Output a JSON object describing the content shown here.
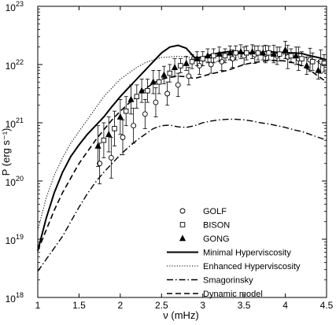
{
  "chart_data": {
    "type": "line",
    "xlabel": "ν (mHz)",
    "ylabel": "P (erg s⁻¹)",
    "xlim": [
      1,
      4.5
    ],
    "ylim_log10": [
      18,
      23
    ],
    "y_scale": "log",
    "grid": false,
    "legend_position": "lower-right",
    "x_ticks": [
      {
        "value": 1,
        "label": "1"
      },
      {
        "value": 1.5,
        "label": "1.5"
      },
      {
        "value": 2,
        "label": "2"
      },
      {
        "value": 2.5,
        "label": "2.5"
      },
      {
        "value": 3,
        "label": "3"
      },
      {
        "value": 3.5,
        "label": "3.5"
      },
      {
        "value": 4,
        "label": "4"
      },
      {
        "value": 4.5,
        "label": "4.5"
      }
    ],
    "y_ticks": [
      {
        "value": 18,
        "base": "10",
        "exp": "18"
      },
      {
        "value": 19,
        "base": "10",
        "exp": "19"
      },
      {
        "value": 20,
        "base": "10",
        "exp": "20"
      },
      {
        "value": 21,
        "base": "10",
        "exp": "21"
      },
      {
        "value": 22,
        "base": "10",
        "exp": "22"
      },
      {
        "value": 23,
        "base": "10",
        "exp": "23"
      }
    ],
    "series": [
      {
        "name": "Minimal Hyperviscosity",
        "kind": "line",
        "dash": "solid",
        "width": 2.0,
        "x": [
          1.0,
          1.1,
          1.2,
          1.3,
          1.4,
          1.5,
          1.6,
          1.7,
          1.8,
          1.9,
          2.0,
          2.1,
          2.2,
          2.3,
          2.4,
          2.5,
          2.6,
          2.7,
          2.8,
          2.9,
          3.0,
          3.1,
          3.2,
          3.3,
          3.4,
          3.5,
          3.6,
          3.7,
          3.8,
          3.9,
          4.0,
          4.1,
          4.2,
          4.3,
          4.4,
          4.5
        ],
        "y": [
          18.8,
          19.35,
          19.8,
          20.15,
          20.42,
          20.62,
          20.8,
          20.95,
          21.1,
          21.28,
          21.45,
          21.6,
          21.75,
          21.9,
          22.05,
          22.2,
          22.3,
          22.33,
          22.28,
          22.12,
          22.12,
          22.17,
          22.2,
          22.22,
          22.22,
          22.2,
          22.2,
          22.21,
          22.22,
          22.21,
          22.2,
          22.2,
          22.19,
          22.15,
          22.12,
          22.08
        ]
      },
      {
        "name": "Enhanced Hyperviscosity",
        "kind": "line",
        "dash": "dotted",
        "width": 1.1,
        "x": [
          1.0,
          1.1,
          1.2,
          1.3,
          1.4,
          1.5,
          1.6,
          1.7,
          1.8,
          1.9,
          2.0,
          2.1,
          2.2,
          2.3,
          2.4,
          2.5,
          2.6,
          2.7,
          2.8,
          2.9,
          3.0,
          3.1,
          3.2,
          3.3,
          3.4,
          3.5,
          3.6,
          3.7,
          3.8,
          3.9,
          4.0,
          4.1,
          4.2,
          4.3,
          4.4,
          4.5
        ],
        "y": [
          19.15,
          19.7,
          20.1,
          20.4,
          20.65,
          20.85,
          21.05,
          21.25,
          21.45,
          21.6,
          21.75,
          21.85,
          21.95,
          22.03,
          22.08,
          22.12,
          22.13,
          22.14,
          22.13,
          22.1,
          22.06,
          22.04,
          22.05,
          22.08,
          22.12,
          22.15,
          22.17,
          22.18,
          22.18,
          22.18,
          22.17,
          22.15,
          22.13,
          22.1,
          22.07,
          22.03
        ]
      },
      {
        "name": "Smagorinsky",
        "kind": "line",
        "dash": "dashdot",
        "width": 1.4,
        "x": [
          1.0,
          1.1,
          1.2,
          1.3,
          1.4,
          1.5,
          1.6,
          1.7,
          1.8,
          1.9,
          2.0,
          2.1,
          2.2,
          2.3,
          2.4,
          2.5,
          2.6,
          2.7,
          2.8,
          2.9,
          3.0,
          3.1,
          3.2,
          3.3,
          3.4,
          3.5,
          3.6,
          3.7,
          3.8,
          3.9,
          4.0,
          4.1,
          4.2,
          4.3,
          4.4,
          4.5
        ],
        "y": [
          18.45,
          18.65,
          18.85,
          19.05,
          19.3,
          19.55,
          19.78,
          19.98,
          20.15,
          20.3,
          20.45,
          20.58,
          20.7,
          20.8,
          20.9,
          20.95,
          20.96,
          20.93,
          20.92,
          20.95,
          21.0,
          21.03,
          21.05,
          21.06,
          21.06,
          21.05,
          21.03,
          21.0,
          20.98,
          20.95,
          20.92,
          20.88,
          20.85,
          20.8,
          20.75,
          20.7
        ]
      },
      {
        "name": "Dynamic model",
        "kind": "line",
        "dash": "dashed",
        "width": 1.6,
        "x": [
          1.0,
          1.1,
          1.2,
          1.3,
          1.4,
          1.5,
          1.6,
          1.7,
          1.8,
          1.9,
          2.0,
          2.1,
          2.2,
          2.3,
          2.4,
          2.5,
          2.6,
          2.7,
          2.8,
          2.9,
          3.0,
          3.1,
          3.2,
          3.3,
          3.4,
          3.5,
          3.6,
          3.7,
          3.8,
          3.9,
          4.0,
          4.1,
          4.2,
          4.3,
          4.4,
          4.5
        ],
        "y": [
          18.8,
          19.15,
          19.5,
          19.8,
          20.05,
          20.3,
          20.5,
          20.7,
          20.88,
          21.05,
          21.2,
          21.33,
          21.45,
          21.58,
          21.68,
          21.75,
          21.78,
          21.8,
          21.79,
          21.76,
          21.8,
          21.84,
          21.87,
          21.9,
          21.95,
          22.0,
          22.03,
          22.05,
          22.07,
          22.07,
          22.06,
          22.03,
          21.98,
          21.9,
          21.8,
          21.7
        ]
      },
      {
        "name": "GOLF",
        "kind": "markers",
        "marker": "circle",
        "x": [
          1.75,
          1.89,
          2.03,
          2.16,
          2.3,
          2.43,
          2.57,
          2.7,
          2.83,
          2.96,
          3.1,
          3.23,
          3.36,
          3.5,
          3.63,
          3.76,
          3.9,
          4.03,
          4.16,
          4.3,
          4.43
        ],
        "y": [
          20.3,
          20.4,
          20.75,
          20.95,
          21.15,
          21.35,
          21.5,
          21.65,
          21.8,
          21.98,
          22.0,
          22.05,
          22.1,
          22.15,
          22.17,
          22.18,
          22.15,
          22.13,
          22.1,
          22.08,
          22.05
        ],
        "err": [
          0.35,
          0.35,
          0.3,
          0.3,
          0.25,
          0.25,
          0.2,
          0.2,
          0.15,
          0.15,
          0.15,
          0.15,
          0.15,
          0.15,
          0.15,
          0.15,
          0.15,
          0.2,
          0.2,
          0.2,
          0.2
        ]
      },
      {
        "name": "BISON",
        "kind": "markers",
        "marker": "square",
        "x": [
          1.8,
          1.93,
          2.07,
          2.2,
          2.33,
          2.47,
          2.6,
          2.73,
          2.87,
          3.0,
          3.13,
          3.27,
          3.4,
          3.53,
          3.67,
          3.8,
          3.93,
          4.07,
          4.2,
          4.33,
          4.47
        ],
        "y": [
          20.7,
          20.9,
          21.2,
          21.45,
          21.55,
          21.7,
          21.85,
          21.98,
          22.05,
          22.1,
          22.15,
          22.15,
          22.2,
          22.2,
          22.2,
          22.2,
          22.18,
          22.15,
          22.1,
          22.05,
          22.02
        ],
        "err": [
          0.3,
          0.3,
          0.25,
          0.2,
          0.2,
          0.2,
          0.15,
          0.12,
          0.12,
          0.12,
          0.12,
          0.12,
          0.12,
          0.12,
          0.12,
          0.12,
          0.12,
          0.12,
          0.12,
          0.15,
          0.15
        ]
      },
      {
        "name": "GONG",
        "kind": "markers",
        "marker": "triangle",
        "x": [
          1.73,
          1.86,
          2.0,
          2.13,
          2.26,
          2.4,
          2.53,
          2.66,
          2.8,
          2.93,
          3.06,
          3.2,
          3.33,
          3.46,
          3.6,
          3.73,
          3.86,
          4.0,
          4.13,
          4.26,
          4.4
        ],
        "y": [
          20.6,
          20.8,
          21.1,
          21.4,
          21.55,
          21.7,
          21.82,
          21.95,
          22.02,
          22.1,
          22.15,
          22.18,
          22.2,
          22.22,
          22.22,
          22.2,
          22.18,
          22.25,
          22.15,
          21.98,
          21.9
        ],
        "err": [
          0.35,
          0.3,
          0.3,
          0.25,
          0.2,
          0.2,
          0.15,
          0.15,
          0.12,
          0.12,
          0.12,
          0.12,
          0.12,
          0.12,
          0.12,
          0.12,
          0.15,
          0.15,
          0.15,
          0.15,
          0.15
        ]
      }
    ]
  }
}
